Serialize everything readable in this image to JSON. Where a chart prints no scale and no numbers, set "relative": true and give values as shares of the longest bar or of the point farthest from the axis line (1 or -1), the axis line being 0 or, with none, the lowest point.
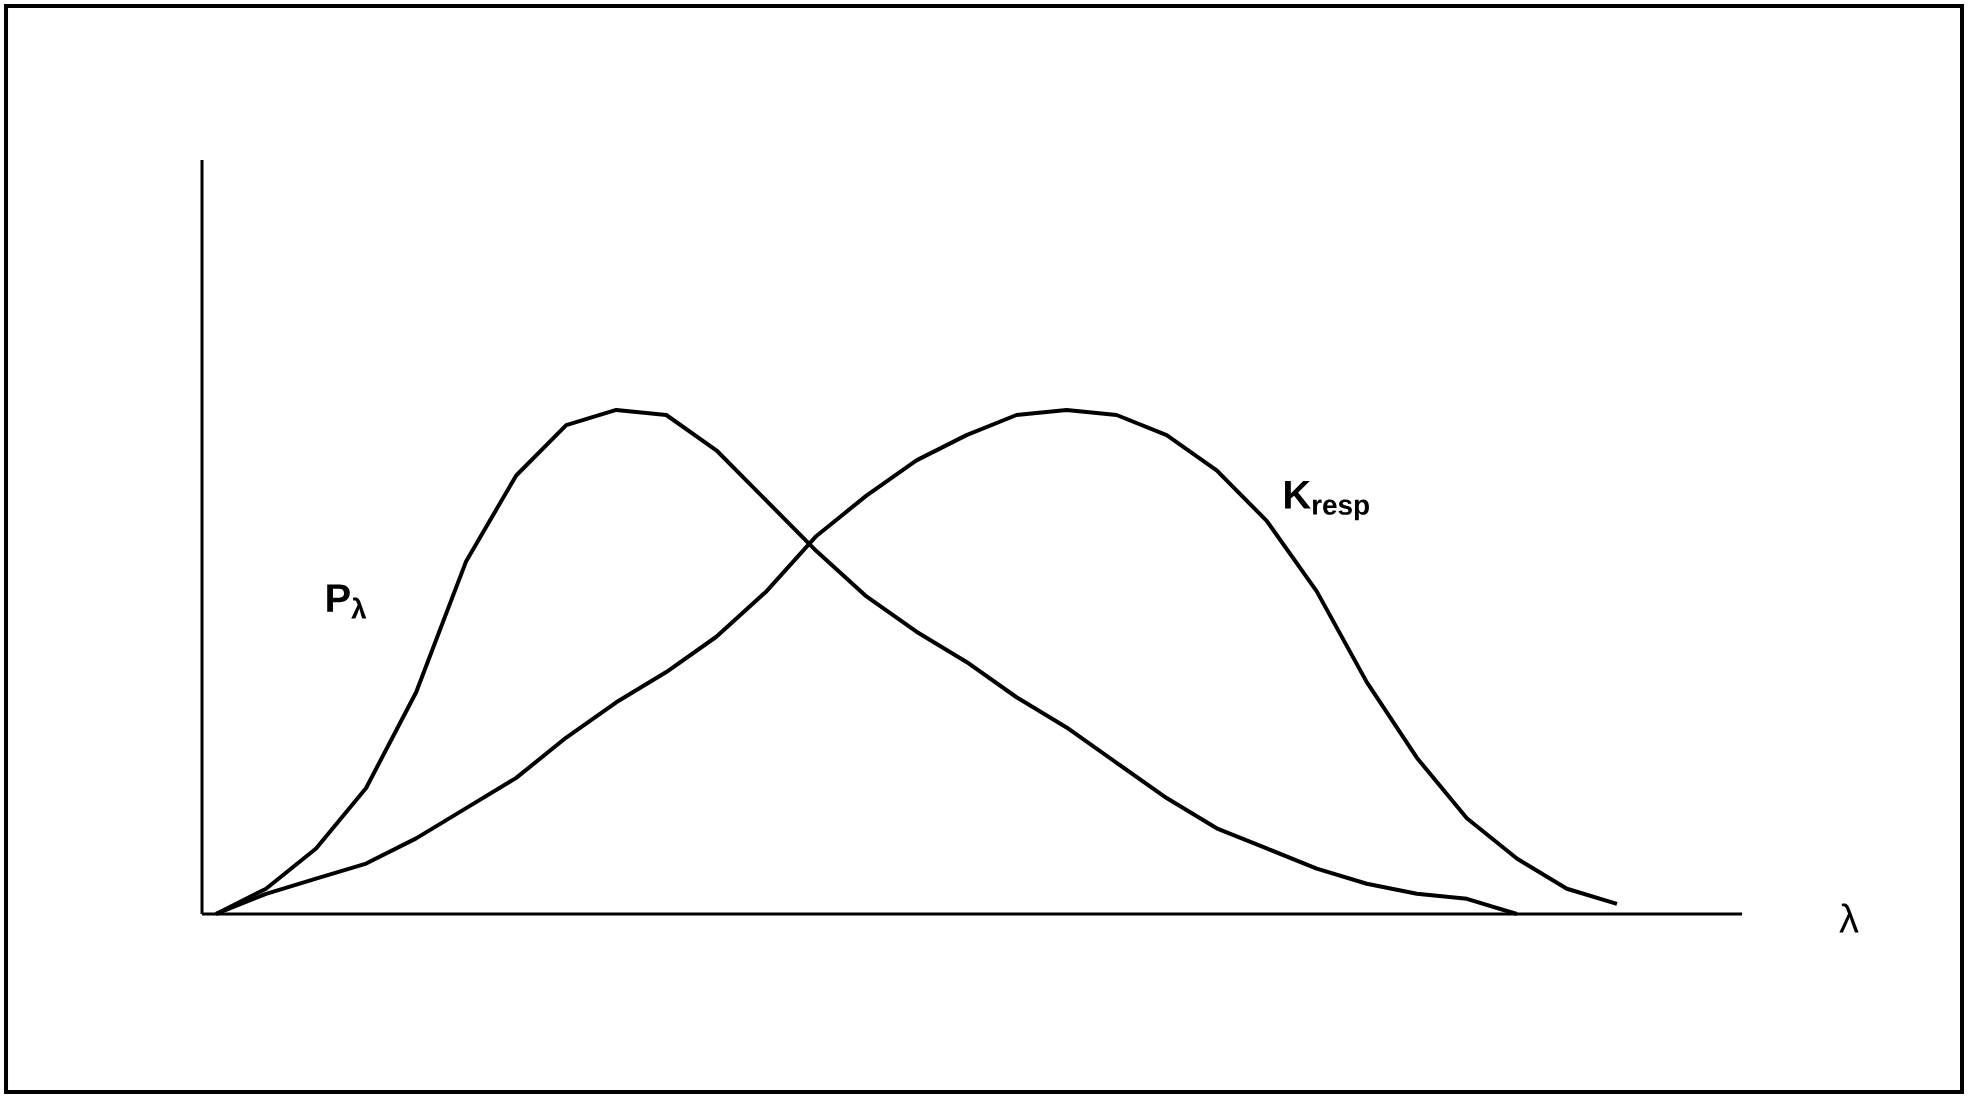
{
  "chart_data": {
    "type": "line",
    "relative": true,
    "xlabel": "λ",
    "categories": [
      null,
      null,
      null,
      null,
      null,
      null,
      null,
      null,
      null,
      null,
      null,
      null,
      null,
      null,
      null,
      null,
      null,
      null,
      null,
      null,
      null,
      null,
      null,
      null,
      null,
      null,
      null,
      null,
      null
    ],
    "series": [
      {
        "name": "**P$_{λ}$**",
        "color": "#000000",
        "values": [
          0,
          0.05,
          0.13,
          0.25,
          0.44,
          0.7,
          0.87,
          0.97,
          1.0,
          0.99,
          0.92,
          0.82,
          0.72,
          0.63,
          0.56,
          0.5,
          0.43,
          0.37,
          0.3,
          0.23,
          0.17,
          0.13,
          0.09,
          0.06,
          0.04,
          0.03,
          0,
          null,
          null
        ]
      },
      {
        "name": "**K$_{resp}$**",
        "color": "#000000",
        "values": [
          0,
          0.04,
          0.07,
          0.1,
          0.15,
          0.21,
          0.27,
          0.35,
          0.42,
          0.48,
          0.55,
          0.64,
          0.75,
          0.83,
          0.9,
          0.95,
          0.99,
          1.0,
          0.99,
          0.95,
          0.88,
          0.78,
          0.64,
          0.46,
          0.31,
          0.19,
          0.11,
          0.05,
          0.02
        ]
      }
    ],
    "marker": "none",
    "line_style": "solid"
  }
}
